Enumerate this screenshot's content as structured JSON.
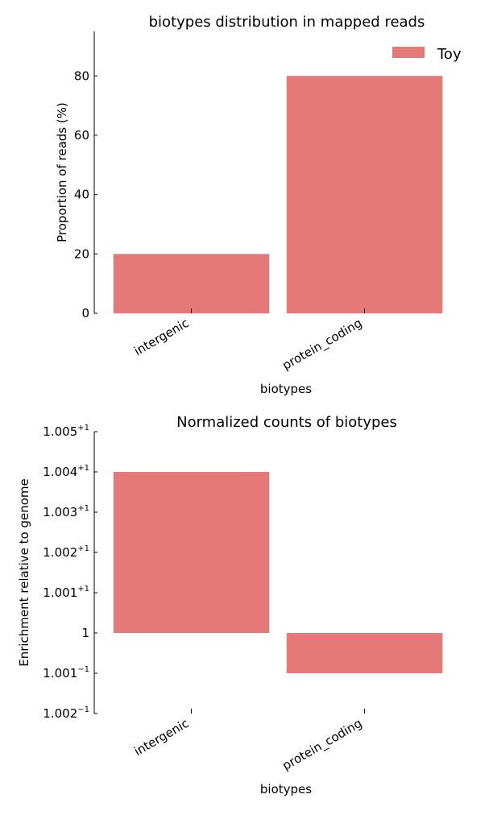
{
  "chart_data": [
    {
      "type": "bar",
      "title": "biotypes distribution in mapped reads",
      "xlabel": "biotypes",
      "ylabel": "Proportion of reads (%)",
      "categories": [
        "intergenic",
        "protein_coding"
      ],
      "series": [
        {
          "name": "Toy",
          "values": [
            20,
            80
          ],
          "color": "#e57878"
        }
      ],
      "ylim": [
        0,
        95
      ],
      "yticks": [
        {
          "value": 0,
          "label": "0"
        },
        {
          "value": 20,
          "label": "20"
        },
        {
          "value": 40,
          "label": "40"
        },
        {
          "value": 60,
          "label": "60"
        },
        {
          "value": 80,
          "label": "80"
        }
      ],
      "legend": {
        "position": "top-right",
        "entries": [
          "Toy"
        ]
      },
      "grid": false
    },
    {
      "type": "bar",
      "title": "Normalized counts of biotypes",
      "xlabel": "biotypes",
      "ylabel": "Enrichment relative to genome",
      "categories": [
        "intergenic",
        "protein_coding"
      ],
      "scale": "log",
      "baseline": 1,
      "series": [
        {
          "values": [
            1.004,
            0.999
          ],
          "color": "#e57878"
        }
      ],
      "yticks": [
        {
          "value": 0.998,
          "base": "1.002",
          "exp": "−1"
        },
        {
          "value": 0.999,
          "base": "1.001",
          "exp": "−1"
        },
        {
          "value": 1.0,
          "base": "1",
          "exp": ""
        },
        {
          "value": 1.001,
          "base": "1.001",
          "exp": "+1"
        },
        {
          "value": 1.002,
          "base": "1.002",
          "exp": "+1"
        },
        {
          "value": 1.003,
          "base": "1.003",
          "exp": "+1"
        },
        {
          "value": 1.004,
          "base": "1.004",
          "exp": "+1"
        },
        {
          "value": 1.005,
          "base": "1.005",
          "exp": "+1"
        }
      ],
      "ylim": [
        0.998,
        1.005
      ],
      "grid": false
    }
  ]
}
